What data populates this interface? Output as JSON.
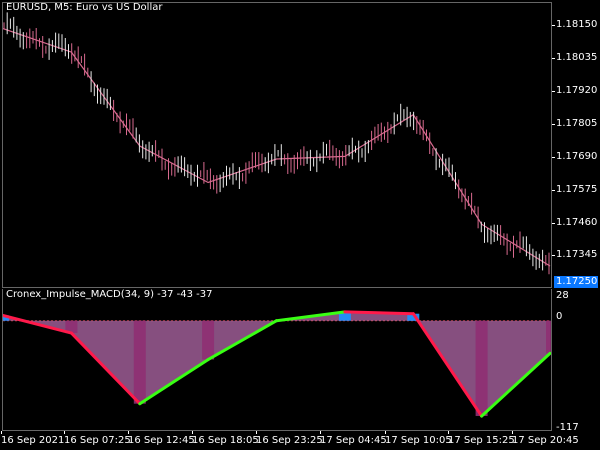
{
  "main_chart": {
    "title": "EURUSD, M5:  Euro vs US Dollar",
    "price_labels": [
      "1.18150",
      "1.18035",
      "1.17920",
      "1.17805",
      "1.17690",
      "1.17575",
      "1.17460",
      "1.17345"
    ],
    "current_price": "1.17250"
  },
  "indicator": {
    "title": "Cronex_Impulse_MACD(34, 9) -37 -43 -37",
    "axis_labels": [
      "28",
      "0",
      "-117"
    ]
  },
  "time_labels": [
    "16 Sep 2021",
    "16 Sep 07:25",
    "16 Sep 12:45",
    "16 Sep 18:05",
    "16 Sep 23:25",
    "17 Sep 04:45",
    "17 Sep 10:05",
    "17 Sep 15:25",
    "17 Sep 20:45"
  ],
  "chart_data": [
    {
      "type": "line",
      "title": "EURUSD, M5:  Euro vs US Dollar",
      "xlabel": "",
      "ylabel": "",
      "x": [
        "16 Sep 2021",
        "16 Sep 07:25",
        "16 Sep 12:45",
        "16 Sep 18:05",
        "16 Sep 23:25",
        "17 Sep 04:45",
        "17 Sep 10:05",
        "17 Sep 15:25",
        "17 Sep 20:45"
      ],
      "series": [
        {
          "values": [
            1.1819,
            1.181,
            1.1774,
            1.176,
            1.1769,
            1.177,
            1.1786,
            1.1744,
            1.1728
          ]
        }
      ],
      "ylim": [
        1.1723,
        1.1825
      ],
      "grid": false,
      "colors": {
        "line": "#d86a8f",
        "up_wick": "#e8e8e8",
        "down_wick": "#d86a8f"
      }
    },
    {
      "type": "area",
      "title": "Cronex_Impulse_MACD(34, 9) -37 -43 -37",
      "xlabel": "",
      "ylabel": "",
      "x": [
        "16 Sep 2021",
        "16 Sep 07:25",
        "16 Sep 12:45",
        "16 Sep 18:05",
        "16 Sep 23:25",
        "17 Sep 04:45",
        "17 Sep 10:05",
        "17 Sep 15:25",
        "17 Sep 20:45"
      ],
      "series": [
        {
          "values": [
            6,
            -14,
            -94,
            -44,
            0,
            10,
            8,
            -108,
            -37
          ]
        }
      ],
      "ylim": [
        -117,
        28
      ],
      "grid": false,
      "colors": {
        "positive": "#1e90ff",
        "negative": "#8f2f73",
        "accent_up": "#39ff14",
        "accent_down": "#ff1a4b",
        "fill_light": "#b36aa9"
      }
    }
  ]
}
